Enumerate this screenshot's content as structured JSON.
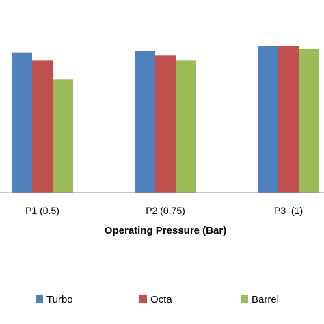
{
  "chart_data": {
    "type": "bar",
    "title": "",
    "xlabel": "Operating Pressure (Bar)",
    "ylabel": "",
    "categories": [
      "P1 (0.5)",
      "P2 (0.75)",
      "P3  (1)"
    ],
    "series": [
      {
        "name": "Turbo",
        "color": "#4f81bd",
        "values": [
          0.88,
          0.89,
          0.92
        ]
      },
      {
        "name": "Octa",
        "color": "#c0504d",
        "values": [
          0.83,
          0.86,
          0.92
        ]
      },
      {
        "name": "Barrel",
        "color": "#9bbb59",
        "values": [
          0.71,
          0.83,
          0.9
        ]
      }
    ],
    "ylim": [
      0,
      1.2
    ],
    "grid": false,
    "legend": "bottom"
  }
}
